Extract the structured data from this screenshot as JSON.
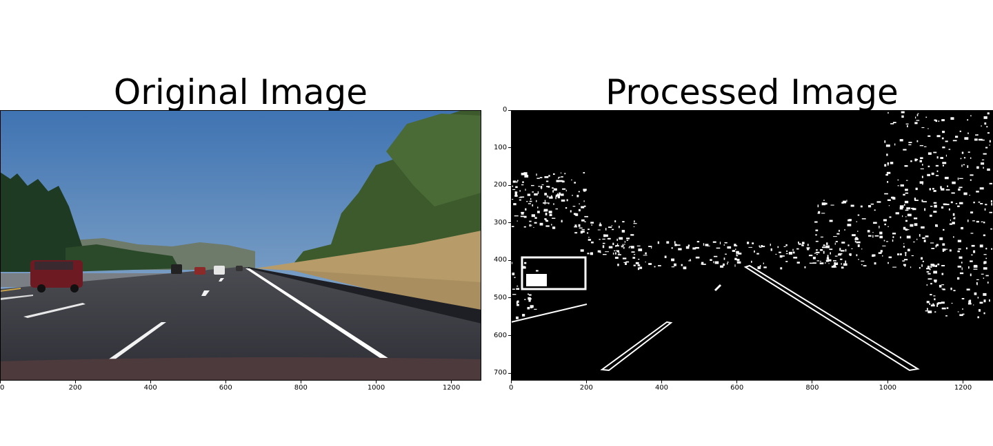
{
  "panels": {
    "left": {
      "title": "Original Image"
    },
    "right": {
      "title": "Processed Image"
    }
  },
  "axes": {
    "left": {
      "x_ticks": [
        "0",
        "200",
        "400",
        "600",
        "800",
        "1000",
        "1200"
      ]
    },
    "right": {
      "x_ticks": [
        "0",
        "200",
        "400",
        "600",
        "800",
        "1000",
        "1200"
      ],
      "y_ticks": [
        "0",
        "100",
        "200",
        "300",
        "400",
        "500",
        "600",
        "700"
      ]
    }
  },
  "colors": {
    "sky": "#4d7fb8",
    "road": "#3a3b42",
    "grass": "#b79c6a",
    "lane_marking": "#ffffff",
    "processed_bg": "#000000",
    "processed_fg": "#ffffff"
  }
}
